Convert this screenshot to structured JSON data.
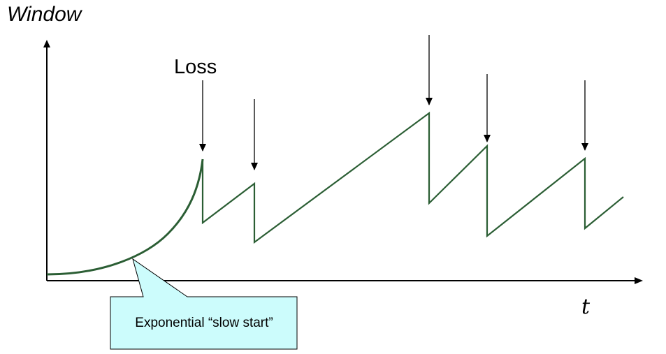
{
  "labels": {
    "y_axis": "Window",
    "x_axis": "t",
    "loss": "Loss",
    "callout": "Exponential “slow start”"
  },
  "colors": {
    "curve": "#2b5e34",
    "callout_fill": "#ccfcfc",
    "axis": "#000000"
  }
}
